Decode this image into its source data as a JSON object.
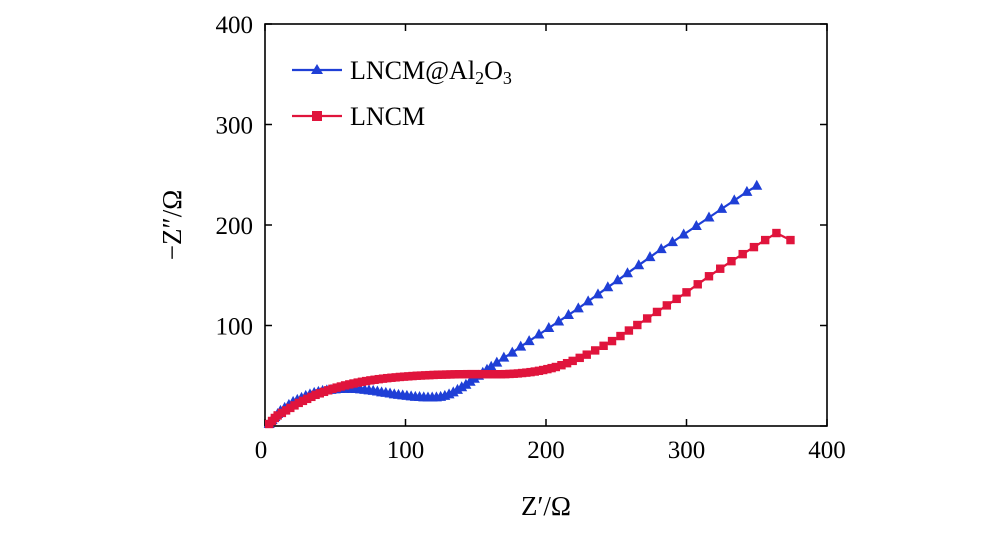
{
  "chart_data": {
    "type": "line",
    "title": "",
    "xlabel": "Z′/Ω",
    "ylabel": "−Z″/Ω",
    "xlim": [
      0,
      400
    ],
    "ylim": [
      0,
      400
    ],
    "xticks": [
      0,
      100,
      200,
      300,
      400
    ],
    "yticks": [
      0,
      100,
      200,
      300,
      400
    ],
    "grid": false,
    "legend_position": "top-left",
    "series": [
      {
        "name": "LNCM@Al2O3",
        "legend_main": "LNCM@Al",
        "legend_sub1": "2",
        "legend_mid": "O",
        "legend_sub2": "3",
        "color": "#1f3fd6",
        "marker": "triangle",
        "x": [
          3,
          5,
          7,
          9,
          11,
          14,
          17,
          20,
          23,
          26,
          29,
          32,
          35,
          38,
          41,
          44,
          47,
          50,
          53,
          56,
          59,
          62,
          65,
          68,
          71,
          74,
          77,
          80,
          83,
          86,
          89,
          92,
          95,
          98,
          101,
          104,
          107,
          110,
          113,
          116,
          119,
          122,
          125,
          128,
          131,
          134,
          137,
          140,
          143,
          146,
          149,
          152,
          155,
          158,
          161,
          165,
          170,
          176,
          182,
          188,
          195,
          202,
          209,
          216,
          223,
          230,
          237,
          244,
          251,
          258,
          266,
          274,
          282,
          290,
          298,
          307,
          316,
          325,
          334,
          343,
          350
        ],
        "y": [
          2,
          6,
          9,
          12,
          15,
          18,
          21,
          24,
          26,
          28,
          30,
          31.5,
          33,
          34,
          35,
          35.5,
          36,
          36.5,
          36.8,
          37,
          37,
          37,
          36.8,
          36.5,
          36,
          35.5,
          35,
          34.3,
          33.5,
          33,
          32.3,
          31.5,
          31,
          30.5,
          30,
          29.5,
          29,
          28.8,
          28.5,
          28.3,
          28.3,
          28.5,
          29,
          30,
          31.5,
          33.5,
          36,
          38.5,
          41,
          44,
          47,
          50,
          53,
          56,
          59,
          63,
          68,
          73,
          79,
          84.5,
          91,
          97.5,
          104,
          110.5,
          117,
          124,
          131,
          138,
          145,
          152,
          160,
          168,
          176,
          183,
          190.5,
          199,
          207.5,
          216,
          224.5,
          233,
          239
        ]
      },
      {
        "name": "LNCM",
        "legend_main": "LNCM",
        "color": "#e0143c",
        "marker": "square",
        "x": [
          3,
          5,
          7,
          9,
          12,
          15,
          18,
          21,
          24,
          27,
          30,
          33,
          36,
          39,
          42,
          45,
          48,
          51,
          54,
          57,
          60,
          63,
          66,
          69,
          72,
          75,
          78,
          81,
          84,
          87,
          90,
          93,
          96,
          99,
          102,
          105,
          108,
          111,
          114,
          117,
          120,
          123,
          126,
          129,
          132,
          135,
          138,
          141,
          144,
          147,
          150,
          153,
          156,
          159,
          162,
          165,
          168,
          171,
          174,
          177,
          180,
          183,
          186,
          189,
          192,
          195,
          198,
          201,
          204,
          207,
          211,
          215,
          219,
          224,
          229,
          235,
          241,
          247,
          253,
          259,
          265,
          272,
          279,
          286,
          293,
          300,
          308,
          316,
          324,
          332,
          340,
          348,
          356,
          364,
          374
        ],
        "y": [
          2,
          5,
          8,
          10.5,
          13,
          15.5,
          18,
          20.5,
          23,
          25,
          27,
          29,
          31,
          32.5,
          34,
          35.5,
          37,
          38.2,
          39.3,
          40.4,
          41.4,
          42.3,
          43.2,
          44,
          44.7,
          45.4,
          46,
          46.6,
          47.1,
          47.6,
          48,
          48.4,
          48.8,
          49.1,
          49.4,
          49.7,
          50,
          50.2,
          50.4,
          50.6,
          50.8,
          51,
          51.1,
          51.2,
          51.3,
          51.4,
          51.5,
          51.5,
          51.6,
          51.6,
          51.6,
          51.6,
          51.6,
          51.5,
          51.5,
          51.5,
          51.5,
          51.6,
          51.8,
          52,
          52.3,
          52.7,
          53.1,
          53.6,
          54.2,
          54.9,
          55.7,
          56.6,
          57.6,
          58.7,
          60.5,
          62.5,
          64.8,
          67.8,
          71,
          75.2,
          79.8,
          84.5,
          89.5,
          95,
          100.5,
          107,
          113.5,
          120,
          126.5,
          133,
          141,
          149,
          156.5,
          164,
          171,
          178,
          185,
          192,
          185
        ]
      }
    ]
  }
}
